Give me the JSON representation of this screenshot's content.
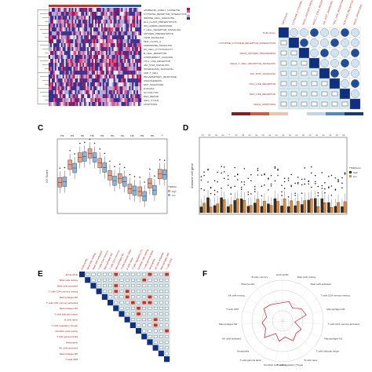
{
  "panels": {
    "a": {
      "label": ""
    },
    "b": {
      "label": ""
    },
    "c": {
      "label": "C",
      "ylabel": "ICI Score",
      "legend_title": "TIDEScore",
      "legend": [
        "high",
        "low"
      ],
      "sig": [
        "ns",
        "ns",
        "ns",
        "ns",
        "ns",
        "ns",
        "ns",
        "ns",
        "ns",
        "ns",
        "*"
      ],
      "box_count": 11
    },
    "d": {
      "label": "D",
      "ylabel": "Immune cell gene",
      "legend_title": "TIDEScore",
      "legend": [
        "high",
        "low"
      ],
      "sig": [
        "ns",
        "ns",
        "ns",
        "ns",
        "*",
        "ns",
        "ns",
        "ns",
        "ns",
        "ns",
        "ns",
        "ns",
        "ns",
        "ns",
        "ns",
        "ns",
        "ns",
        "ns",
        "ns",
        "ns",
        "ns",
        "ns"
      ]
    },
    "e": {
      "label": "E"
    },
    "f": {
      "label": "F",
      "spokes": [
        "Eosinophils",
        "Mast cells resting",
        "Mast cells activated",
        "T cells CD4 memory resting",
        "Macrophages M2",
        "T cells CD4 memory activated",
        "Macrophages M1",
        "T cells follicular helper",
        "B cells naive",
        "T cells regulatory (Tregs)",
        "Dendritic cells resting",
        "T cells gamma delta",
        "Neutrophils",
        "NK cells activated",
        "Macrophages M0",
        "T cells CD8",
        "NK cells resting",
        "Plasma cells",
        "B cells memory"
      ],
      "radar_values": [
        0.45,
        0.5,
        0.4,
        0.55,
        0.6,
        0.3,
        0.5,
        0.45,
        0.55,
        0.4,
        0.5,
        0.35,
        0.6,
        0.45,
        0.5,
        0.4,
        0.55,
        0.5,
        0.45
      ]
    },
    "b_rows": [
      "TGFb.Score",
      "CYTOKINE_CYTOKINE_RECEPTOR_INTERACTION",
      "KEGG_ANTIGEN_PROCESSING",
      "KEGG_T_CELL_RECEPTOR_SIGNALING",
      "JAK_STAT_SIGNALING",
      "TOLL_LIKE_RECEPTOR",
      "NOD_LIKE_RECEPTOR",
      "KEGG_APOPTOSIS"
    ],
    "a_rows": [
      "APOBEC3G_FAMILY_CASSETTE",
      "CYTOKINE_RECEPTOR_INTERACTION",
      "IMMUNE_CELL_SIGNALING",
      "HLA_CLASS_PRESENTATION",
      "IFN_GAMMA_RESPONSE",
      "T_CELL_RECEPTOR_SIGNALING",
      "ANTIGEN_PRESENTATION",
      "TGFB_SIGNALING",
      "MHC_CLASS_II",
      "CHEMOKINE_SIGNALING",
      "NK_CELL_CYTOTOXICITY",
      "B_CELL_RECEPTOR",
      "COMPLEMENT_CASCADE",
      "TOLL_LIKE_RECEPTOR",
      "JAK_STAT_SIGNALING",
      "INTERLEUKIN_SIGNALING",
      "CD8_T_CELL",
      "INFLAMMATORY_RESPONSE",
      "ANGIOGENESIS",
      "EMT_SIGNATURE",
      "HYPOXIA",
      "GLYCOLYSIS",
      "DNA_REPAIR",
      "CELL_CYCLE",
      "APOPTOSIS"
    ]
  },
  "colors": {
    "red": "#c0392b",
    "blue": "#2c5aa0",
    "orange": "#e08a3c",
    "brown": "#3b2a1a",
    "lightblue": "#8fb4d9",
    "salmon": "#e8a08a"
  }
}
